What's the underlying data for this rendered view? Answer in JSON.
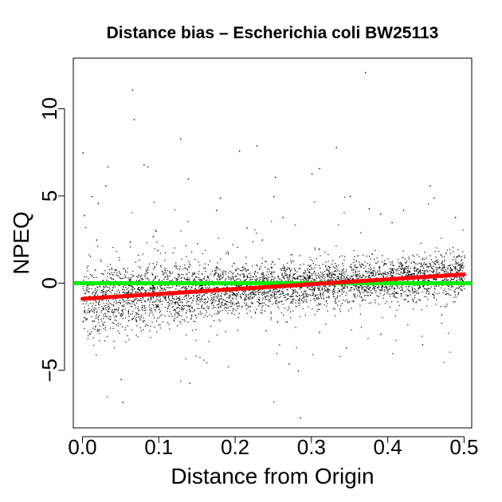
{
  "chart_data": {
    "type": "scatter",
    "title": "Distance bias – Escherichia coli BW25113",
    "xlabel": "Distance from Origin",
    "ylabel": "NPEQ",
    "xlim": [
      -0.012,
      0.51
    ],
    "ylim": [
      -8.3,
      12.9
    ],
    "x_ticks": [
      0.0,
      0.1,
      0.2,
      0.3,
      0.4,
      0.5
    ],
    "x_tick_labels": [
      "0.0",
      "0.1",
      "0.2",
      "0.3",
      "0.4",
      "0.5"
    ],
    "y_ticks": [
      -5,
      0,
      5,
      10
    ],
    "y_tick_labels": [
      "−5",
      "0",
      "5",
      "10"
    ],
    "grid": false,
    "colors": {
      "points": "#000000",
      "reference_line": "#00ee00",
      "trend_line": "#ff0000"
    },
    "reference_line": {
      "y": 0
    },
    "trend_line": {
      "x": [
        0.0,
        0.5
      ],
      "y": [
        -0.9,
        0.5
      ]
    },
    "points": [
      [
        0.0,
        7.5
      ],
      [
        0.002,
        3.9
      ],
      [
        0.012,
        5.0
      ],
      [
        0.02,
        4.6
      ],
      [
        0.018,
        2.5
      ],
      [
        0.03,
        5.6
      ],
      [
        0.033,
        6.7
      ],
      [
        0.05,
        -5.5
      ],
      [
        0.052,
        -6.8
      ],
      [
        0.062,
        2.4
      ],
      [
        0.065,
        11.1
      ],
      [
        0.067,
        9.4
      ],
      [
        0.08,
        6.8
      ],
      [
        0.085,
        6.7
      ],
      [
        0.092,
        2.7
      ],
      [
        0.096,
        3.0
      ],
      [
        0.098,
        1.9
      ],
      [
        0.128,
        8.3
      ],
      [
        0.138,
        6.0
      ],
      [
        0.14,
        -5.7
      ],
      [
        0.205,
        7.6
      ],
      [
        0.228,
        7.9
      ],
      [
        0.25,
        5.0
      ],
      [
        0.252,
        6.1
      ],
      [
        0.262,
        3.8
      ],
      [
        0.27,
        -4.6
      ],
      [
        0.282,
        -5.0
      ],
      [
        0.285,
        -7.7
      ],
      [
        0.3,
        6.3
      ],
      [
        0.31,
        6.6
      ],
      [
        0.332,
        7.8
      ],
      [
        0.345,
        -3.7
      ],
      [
        0.35,
        5.0
      ],
      [
        0.37,
        12.1
      ],
      [
        0.375,
        4.3
      ],
      [
        0.39,
        -2.9
      ],
      [
        0.42,
        4.2
      ],
      [
        0.445,
        -3.5
      ],
      [
        0.455,
        5.6
      ],
      [
        0.46,
        4.9
      ],
      [
        0.47,
        -1.8
      ],
      [
        0.488,
        3.8
      ],
      [
        0.5,
        1.5
      ],
      [
        0.495,
        -0.3
      ],
      [
        0.12,
        1.0
      ],
      [
        0.15,
        2.3
      ],
      [
        0.16,
        0.9
      ],
      [
        0.175,
        4.2
      ],
      [
        0.18,
        4.9
      ],
      [
        0.19,
        1.8
      ],
      [
        0.215,
        3.2
      ],
      [
        0.235,
        2.5
      ],
      [
        0.24,
        -2.7
      ],
      [
        0.255,
        -2.2
      ],
      [
        0.31,
        -2.8
      ],
      [
        0.33,
        0.9
      ],
      [
        0.36,
        1.6
      ],
      [
        0.39,
        4.0
      ],
      [
        0.405,
        3.5
      ],
      [
        0.43,
        1.2
      ]
    ]
  }
}
